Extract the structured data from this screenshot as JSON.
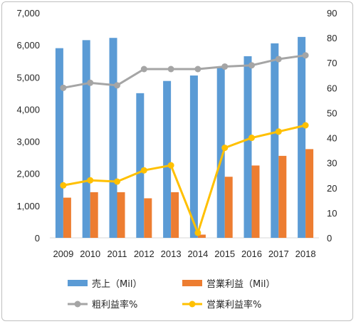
{
  "chart_data": {
    "type": "bar",
    "categories": [
      "2009",
      "2010",
      "2011",
      "2012",
      "2013",
      "2014",
      "2015",
      "2016",
      "2017",
      "2018"
    ],
    "series": [
      {
        "name": "売上（Mil）",
        "kind": "bar",
        "axis": "left",
        "color": "#5b9bd5",
        "values": [
          5900,
          6150,
          6220,
          4500,
          4880,
          5050,
          5300,
          5650,
          6050,
          6250
        ]
      },
      {
        "name": "営業利益（Mil）",
        "kind": "bar",
        "axis": "left",
        "color": "#ed7d31",
        "values": [
          1250,
          1420,
          1420,
          1230,
          1420,
          100,
          1900,
          2250,
          2550,
          2760
        ]
      },
      {
        "name": "粗利益率%",
        "kind": "line",
        "axis": "right",
        "color": "#a5a5a5",
        "values": [
          60,
          62,
          61,
          67.5,
          67.5,
          67.5,
          68.5,
          69,
          71.5,
          73
        ]
      },
      {
        "name": "営業利益率%",
        "kind": "line",
        "axis": "right",
        "color": "#ffc000",
        "values": [
          21,
          23,
          22.5,
          27,
          29,
          2,
          36,
          40,
          42.5,
          45
        ]
      }
    ],
    "y_left": {
      "range": [
        0,
        7000
      ],
      "ticks": [
        "0",
        "1,000",
        "2,000",
        "3,000",
        "4,000",
        "5,000",
        "6,000",
        "7,000"
      ]
    },
    "y_right": {
      "range": [
        0,
        90
      ],
      "ticks": [
        "0",
        "10",
        "20",
        "30",
        "40",
        "50",
        "60",
        "70",
        "80",
        "90"
      ]
    },
    "grid": false,
    "legend_position": "bottom"
  }
}
